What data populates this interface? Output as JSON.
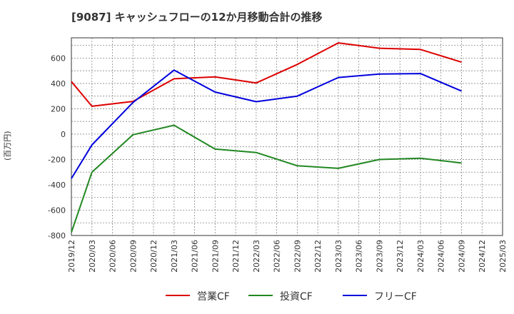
{
  "chart_data": {
    "type": "line",
    "title": "[9087]  キャッシュフローの12か月移動合計の推移",
    "ylabel": "(百万円)",
    "xlabel": "",
    "ylim": [
      -800,
      760
    ],
    "yticks": [
      -800,
      -600,
      -400,
      -200,
      0,
      200,
      400,
      600
    ],
    "grid": true,
    "legend_position": "bottom-center",
    "x_ticks": [
      "2019/12",
      "2020/03",
      "2020/06",
      "2020/09",
      "2020/12",
      "2021/03",
      "2021/06",
      "2021/09",
      "2021/12",
      "2022/03",
      "2022/06",
      "2022/09",
      "2022/12",
      "2023/03",
      "2023/06",
      "2023/09",
      "2023/12",
      "2024/03",
      "2024/06",
      "2024/09",
      "2024/12",
      "2025/03"
    ],
    "series": [
      {
        "name": "営業CF",
        "color": "#dd0000",
        "x": [
          "2019/12",
          "2020/03",
          "2020/09",
          "2021/03",
          "2021/09",
          "2022/03",
          "2022/09",
          "2023/03",
          "2023/09",
          "2024/03",
          "2024/09"
        ],
        "values": [
          415,
          220,
          258,
          437,
          452,
          404,
          550,
          720,
          678,
          668,
          568
        ]
      },
      {
        "name": "投資CF",
        "color": "#228822",
        "x": [
          "2019/12",
          "2020/03",
          "2020/09",
          "2021/03",
          "2021/09",
          "2022/03",
          "2022/09",
          "2023/03",
          "2023/09",
          "2024/03",
          "2024/09"
        ],
        "values": [
          -775,
          -300,
          -5,
          70,
          -118,
          -145,
          -250,
          -270,
          -200,
          -190,
          -228
        ]
      },
      {
        "name": "フリーCF",
        "color": "#0000dd",
        "x": [
          "2019/12",
          "2020/03",
          "2020/09",
          "2021/03",
          "2021/09",
          "2022/03",
          "2022/09",
          "2023/03",
          "2023/09",
          "2024/03",
          "2024/09"
        ],
        "values": [
          -350,
          -85,
          250,
          505,
          332,
          256,
          300,
          447,
          474,
          478,
          340
        ]
      }
    ]
  }
}
